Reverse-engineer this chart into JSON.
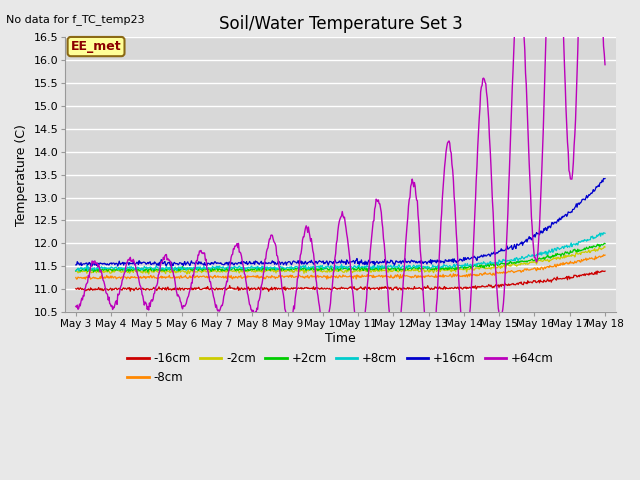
{
  "title": "Soil/Water Temperature Set 3",
  "xlabel": "Time",
  "ylabel": "Temperature (C)",
  "ylim": [
    10.5,
    16.5
  ],
  "note": "No data for f_TC_temp23",
  "legend_label": "EE_met",
  "colors": {
    "-16cm": "#cc0000",
    "-8cm": "#ff8800",
    "-2cm": "#cccc00",
    "+2cm": "#00cc00",
    "+8cm": "#00cccc",
    "+16cm": "#0000cc",
    "+64cm": "#bb00bb"
  },
  "background_color": "#e8e8e8",
  "plot_bg_color": "#d8d8d8",
  "n_days": 15,
  "start_day": 3,
  "pts_per_day": 48,
  "yticks": [
    10.5,
    11.0,
    11.5,
    12.0,
    12.5,
    13.0,
    13.5,
    14.0,
    14.5,
    15.0,
    15.5,
    16.0,
    16.5
  ]
}
